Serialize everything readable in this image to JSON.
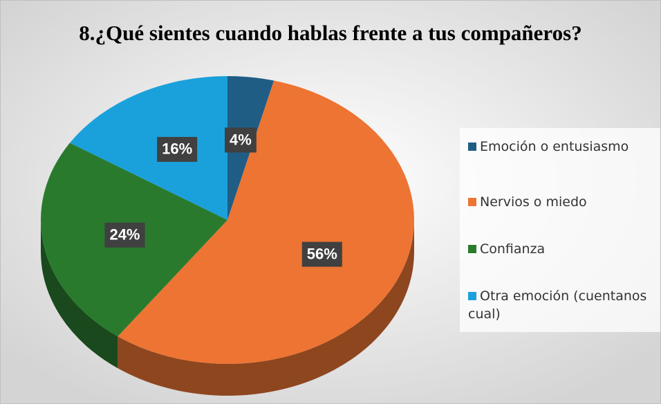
{
  "chart_data": {
    "type": "pie",
    "title": "8.¿Qué sientes cuando hablas frente a tus compañeros?",
    "categories": [
      "Emoción o entusiasmo",
      "Nervios o miedo",
      "Confianza",
      "Otra emoción (cuentanos cual)"
    ],
    "values": [
      4,
      56,
      24,
      16
    ],
    "value_labels": [
      "4%",
      "56%",
      "24%",
      "16%"
    ],
    "colors": [
      "#1f5d85",
      "#ed7433",
      "#2a7a2e",
      "#1aa1dc"
    ],
    "legend": "right"
  }
}
